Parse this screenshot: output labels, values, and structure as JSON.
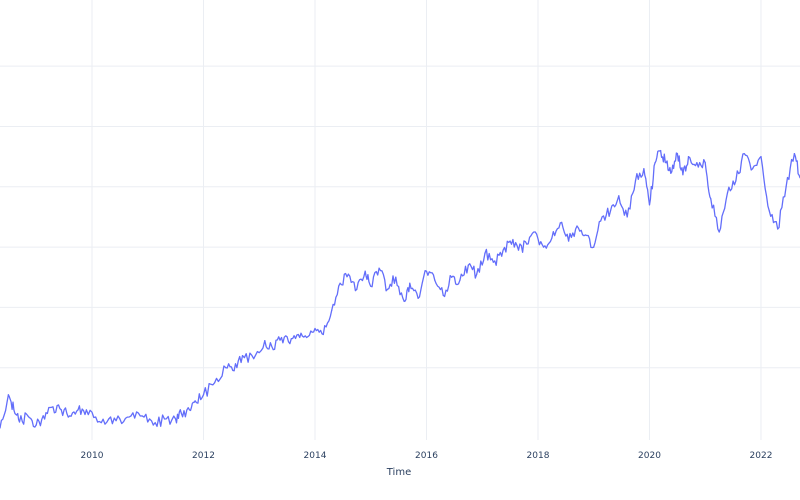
{
  "chart_data": {
    "type": "line",
    "title": "",
    "xlabel": "Time",
    "ylabel": "",
    "grid": true,
    "x_ticks": [
      "2010",
      "2012",
      "2014",
      "2016",
      "2018",
      "2020",
      "2022"
    ],
    "xlim": [
      2008.35,
      2022.7
    ],
    "ylim": [
      0,
      6.6
    ],
    "y_gridlines": [
      1,
      2,
      3,
      4,
      5,
      6
    ],
    "series": [
      {
        "name": "",
        "color": "#636efa",
        "x": [
          2008.35,
          2008.5,
          2008.6,
          2008.7,
          2008.85,
          2009.0,
          2009.15,
          2009.3,
          2009.45,
          2009.6,
          2009.75,
          2009.9,
          2010.1,
          2010.3,
          2010.5,
          2010.7,
          2010.9,
          2011.1,
          2011.3,
          2011.5,
          2011.6,
          2011.75,
          2011.85,
          2012.0,
          2012.2,
          2012.4,
          2012.55,
          2012.7,
          2012.9,
          2013.1,
          2013.25,
          2013.4,
          2013.55,
          2013.7,
          2013.85,
          2014.0,
          2014.15,
          2014.3,
          2014.45,
          2014.6,
          2014.75,
          2014.9,
          2015.0,
          2015.15,
          2015.3,
          2015.45,
          2015.6,
          2015.7,
          2015.85,
          2016.0,
          2016.15,
          2016.3,
          2016.45,
          2016.6,
          2016.75,
          2016.9,
          2017.05,
          2017.2,
          2017.35,
          2017.5,
          2017.65,
          2017.8,
          2017.95,
          2018.1,
          2018.25,
          2018.4,
          2018.55,
          2018.7,
          2018.85,
          2019.0,
          2019.15,
          2019.3,
          2019.45,
          2019.6,
          2019.75,
          2019.9,
          2020.0,
          2020.1,
          2020.2,
          2020.3,
          2020.4,
          2020.5,
          2020.6,
          2020.7,
          2020.85,
          2021.0,
          2021.1,
          2021.25,
          2021.4,
          2021.55,
          2021.7,
          2021.85,
          2022.0,
          2022.15,
          2022.3,
          2022.45,
          2022.6,
          2022.7
        ],
        "y": [
          0.0,
          0.55,
          0.3,
          0.1,
          0.2,
          0.05,
          0.15,
          0.35,
          0.3,
          0.2,
          0.3,
          0.3,
          0.1,
          0.15,
          0.15,
          0.2,
          0.2,
          0.05,
          0.15,
          0.15,
          0.25,
          0.3,
          0.45,
          0.55,
          0.75,
          1.0,
          0.95,
          1.2,
          1.15,
          1.45,
          1.3,
          1.5,
          1.4,
          1.55,
          1.5,
          1.65,
          1.55,
          1.95,
          2.4,
          2.55,
          2.3,
          2.6,
          2.35,
          2.65,
          2.3,
          2.5,
          2.1,
          2.4,
          2.15,
          2.6,
          2.45,
          2.2,
          2.5,
          2.45,
          2.7,
          2.55,
          2.9,
          2.75,
          2.85,
          3.1,
          2.95,
          3.05,
          3.25,
          3.0,
          3.15,
          3.4,
          3.1,
          3.35,
          3.2,
          3.0,
          3.5,
          3.6,
          3.85,
          3.5,
          4.1,
          4.3,
          3.7,
          4.4,
          4.6,
          4.4,
          4.25,
          4.55,
          4.2,
          4.5,
          4.4,
          4.4,
          3.8,
          3.25,
          3.9,
          4.1,
          4.55,
          4.3,
          4.5,
          3.6,
          3.3,
          4.0,
          4.55,
          4.15
        ]
      }
    ]
  }
}
